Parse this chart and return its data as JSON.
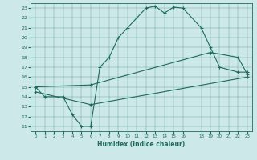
{
  "xlabel": "Humidex (Indice chaleur)",
  "xlim": [
    -0.5,
    23.5
  ],
  "ylim": [
    10.5,
    23.5
  ],
  "yticks": [
    11,
    12,
    13,
    14,
    15,
    16,
    17,
    18,
    19,
    20,
    21,
    22,
    23
  ],
  "xticks": [
    0,
    1,
    2,
    3,
    4,
    5,
    6,
    7,
    8,
    9,
    10,
    11,
    12,
    13,
    14,
    15,
    16,
    18,
    19,
    20,
    21,
    22,
    23
  ],
  "bg_color": "#cde8e8",
  "line_color": "#1a6b5a",
  "line1_x": [
    0,
    1,
    3,
    4,
    5,
    6,
    7,
    8,
    9,
    10,
    11,
    12,
    13,
    14,
    15,
    16,
    18,
    19,
    20,
    22,
    23
  ],
  "line1_y": [
    15,
    14,
    14,
    12.2,
    11,
    11,
    17,
    18,
    20,
    21,
    22,
    23.0,
    23.2,
    22.5,
    23.1,
    23.0,
    21,
    19,
    17,
    16.5,
    16.5
  ],
  "line2_x": [
    0,
    6,
    19,
    22,
    23
  ],
  "line2_y": [
    15,
    15.2,
    18.5,
    18.0,
    16.3
  ],
  "line3_x": [
    0,
    6,
    23
  ],
  "line3_y": [
    14.5,
    13.2,
    16.0
  ]
}
